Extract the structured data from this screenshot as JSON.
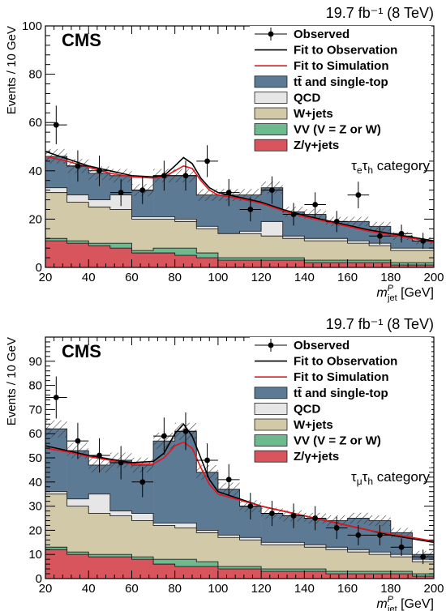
{
  "chart_data": [
    {
      "type": "histogram-stack",
      "lumi_label": "19.7 fb⁻¹ (8 TeV)",
      "experiment": "CMS",
      "category_label": "τeτh category",
      "ylabel": "Events / 10 GeV",
      "xlabel": "m_jet^P [GeV]",
      "xlim": [
        20,
        200
      ],
      "ylim": [
        0,
        100
      ],
      "y_ticks": [
        0,
        20,
        40,
        60,
        80,
        100
      ],
      "x_ticks": [
        20,
        40,
        60,
        80,
        100,
        120,
        140,
        160,
        180,
        200
      ],
      "bin_edges": [
        20,
        30,
        40,
        50,
        60,
        70,
        80,
        90,
        100,
        110,
        120,
        130,
        140,
        150,
        160,
        170,
        180,
        190,
        200
      ],
      "legend": [
        {
          "key": "observed",
          "label": "Observed",
          "kind": "marker",
          "color": "#000000"
        },
        {
          "key": "fit_obs",
          "label": "Fit to Observation",
          "kind": "line",
          "color": "#000000"
        },
        {
          "key": "fit_sim",
          "label": "Fit to Simulation",
          "kind": "line",
          "color": "#e8141c"
        },
        {
          "key": "ttbar",
          "label": "tt̄ and single-top",
          "kind": "box",
          "color": "#5d7a94"
        },
        {
          "key": "qcd",
          "label": "QCD",
          "kind": "box",
          "color": "#e6e6e6"
        },
        {
          "key": "wjets",
          "label": "W+jets",
          "kind": "box",
          "color": "#d1c9a8"
        },
        {
          "key": "vv",
          "label": "VV (V = Z or W)",
          "kind": "box",
          "color": "#6cba8e"
        },
        {
          "key": "zjets",
          "label": "Z/γ+jets",
          "kind": "box",
          "color": "#d9555d"
        }
      ],
      "stack": [
        {
          "key": "zjets",
          "values": [
            11,
            10,
            9,
            8,
            6,
            6,
            5,
            4,
            3,
            3,
            3,
            3,
            2,
            2,
            2,
            2,
            1,
            1
          ]
        },
        {
          "key": "vv",
          "values": [
            1,
            1,
            1,
            2,
            1,
            2,
            3,
            2,
            1,
            1,
            1,
            1,
            1,
            1,
            1,
            1,
            1,
            1
          ]
        },
        {
          "key": "wjets",
          "values": [
            19,
            16,
            15,
            14,
            13,
            12,
            11,
            10,
            10,
            10,
            9,
            8,
            8,
            8,
            7,
            6,
            5,
            5
          ]
        },
        {
          "key": "qcd",
          "values": [
            2,
            3,
            3,
            6,
            1,
            1,
            1,
            1,
            0,
            1,
            6,
            1,
            1,
            1,
            1,
            1,
            1,
            1
          ]
        },
        {
          "key": "ttbar",
          "values": [
            13,
            12,
            11,
            8,
            11,
            17,
            18,
            13,
            16,
            15,
            14,
            10,
            10,
            7,
            8,
            7,
            5,
            3
          ]
        }
      ],
      "observed": {
        "values": [
          59,
          42,
          40,
          31,
          32,
          38,
          38,
          44,
          31,
          24,
          32,
          22,
          26,
          19,
          30,
          13,
          14,
          11
        ],
        "errors": [
          8,
          6.5,
          6.3,
          5.6,
          5.7,
          6.2,
          6.2,
          6.6,
          5.6,
          4.9,
          5.7,
          4.7,
          5.1,
          4.4,
          5.5,
          3.6,
          3.7,
          3.3
        ]
      },
      "fit_obs": {
        "x": [
          20,
          30,
          40,
          50,
          60,
          70,
          75,
          80,
          84,
          88,
          92,
          96,
          100,
          110,
          120,
          130,
          140,
          150,
          160,
          170,
          180,
          190,
          200
        ],
        "y": [
          48,
          45,
          42,
          40,
          38,
          37.5,
          38,
          42,
          45.5,
          43,
          37,
          33,
          31,
          29,
          27,
          24,
          21.5,
          19.5,
          17.5,
          15.5,
          14,
          12.5,
          11
        ]
      },
      "fit_sim": {
        "x": [
          20,
          30,
          40,
          50,
          60,
          70,
          75,
          80,
          84,
          88,
          92,
          96,
          100,
          110,
          120,
          130,
          140,
          150,
          160,
          170,
          180,
          190,
          200
        ],
        "y": [
          46,
          44,
          41.5,
          39,
          37.5,
          37,
          37.5,
          40,
          42,
          41,
          36,
          32,
          30,
          28.5,
          26.5,
          23.5,
          21,
          19,
          17,
          15,
          13.5,
          12,
          10.5
        ]
      }
    },
    {
      "type": "histogram-stack",
      "lumi_label": "19.7 fb⁻¹ (8 TeV)",
      "experiment": "CMS",
      "category_label": "τμτh category",
      "ylabel": "Events / 10 GeV",
      "xlabel": "m_jet^P [GeV]",
      "xlim": [
        20,
        200
      ],
      "ylim": [
        0,
        100
      ],
      "y_ticks": [
        0,
        10,
        20,
        30,
        40,
        50,
        60,
        70,
        80,
        90
      ],
      "x_ticks": [
        20,
        40,
        60,
        80,
        100,
        120,
        140,
        160,
        180,
        200
      ],
      "bin_edges": [
        20,
        30,
        40,
        50,
        60,
        70,
        80,
        90,
        100,
        110,
        120,
        130,
        140,
        150,
        160,
        170,
        180,
        190,
        200
      ],
      "legend": [
        {
          "key": "observed",
          "label": "Observed",
          "kind": "marker",
          "color": "#000000"
        },
        {
          "key": "fit_obs",
          "label": "Fit to Observation",
          "kind": "line",
          "color": "#000000"
        },
        {
          "key": "fit_sim",
          "label": "Fit to Simulation",
          "kind": "line",
          "color": "#e8141c"
        },
        {
          "key": "ttbar",
          "label": "tt̄ and single-top",
          "kind": "box",
          "color": "#5d7a94"
        },
        {
          "key": "qcd",
          "label": "QCD",
          "kind": "box",
          "color": "#e6e6e6"
        },
        {
          "key": "wjets",
          "label": "W+jets",
          "kind": "box",
          "color": "#d1c9a8"
        },
        {
          "key": "vv",
          "label": "VV (V = Z or W)",
          "kind": "box",
          "color": "#6cba8e"
        },
        {
          "key": "zjets",
          "label": "Z/γ+jets",
          "kind": "box",
          "color": "#d9555d"
        }
      ],
      "stack": [
        {
          "key": "zjets",
          "values": [
            12,
            10,
            9,
            9,
            8,
            6,
            5,
            5,
            4,
            4,
            3,
            3,
            3,
            2,
            2,
            2,
            2,
            1
          ]
        },
        {
          "key": "vv",
          "values": [
            1,
            1,
            1,
            1,
            1,
            2,
            3,
            2,
            1,
            1,
            1,
            1,
            1,
            1,
            1,
            1,
            1,
            1
          ]
        },
        {
          "key": "wjets",
          "values": [
            22,
            19,
            17,
            16,
            15,
            14,
            13,
            12,
            12,
            11,
            10,
            10,
            9,
            9,
            8,
            7,
            6,
            5
          ]
        },
        {
          "key": "qcd",
          "values": [
            1,
            3,
            8,
            2,
            3,
            1,
            2,
            1,
            1,
            1,
            1,
            1,
            1,
            1,
            1,
            1,
            1,
            1
          ]
        },
        {
          "key": "ttbar",
          "values": [
            26,
            20,
            12,
            21,
            20,
            34,
            38,
            24,
            19,
            13,
            12,
            11,
            11,
            11,
            13,
            13,
            9,
            2
          ]
        }
      ],
      "observed": {
        "values": [
          75,
          57,
          51,
          48,
          40,
          59,
          61,
          49,
          41,
          30,
          27,
          26,
          25,
          21,
          18,
          18,
          13,
          9
        ],
        "errors": [
          8.7,
          7.5,
          7.1,
          6.9,
          6.3,
          7.7,
          7.8,
          7,
          6.4,
          5.5,
          5.2,
          5.1,
          5,
          4.6,
          4.2,
          4.2,
          3.6,
          3
        ]
      },
      "fit_obs": {
        "x": [
          20,
          30,
          40,
          50,
          60,
          70,
          75,
          80,
          84,
          88,
          92,
          96,
          100,
          110,
          120,
          130,
          140,
          150,
          160,
          170,
          180,
          190,
          200
        ],
        "y": [
          55,
          53,
          51,
          49.5,
          48,
          48.5,
          52,
          60,
          64,
          59,
          50,
          41,
          36,
          33,
          30,
          28,
          26,
          24,
          22,
          20,
          18,
          16.5,
          15
        ]
      },
      "fit_sim": {
        "x": [
          20,
          30,
          40,
          50,
          60,
          70,
          75,
          80,
          84,
          88,
          92,
          96,
          100,
          110,
          120,
          130,
          140,
          150,
          160,
          170,
          180,
          190,
          200
        ],
        "y": [
          54,
          52.5,
          50.5,
          49,
          47.5,
          47.5,
          50,
          55,
          56.5,
          54,
          46,
          39,
          35,
          32.5,
          30,
          28,
          26,
          24,
          22,
          20,
          18.5,
          17,
          15.5
        ]
      }
    }
  ]
}
